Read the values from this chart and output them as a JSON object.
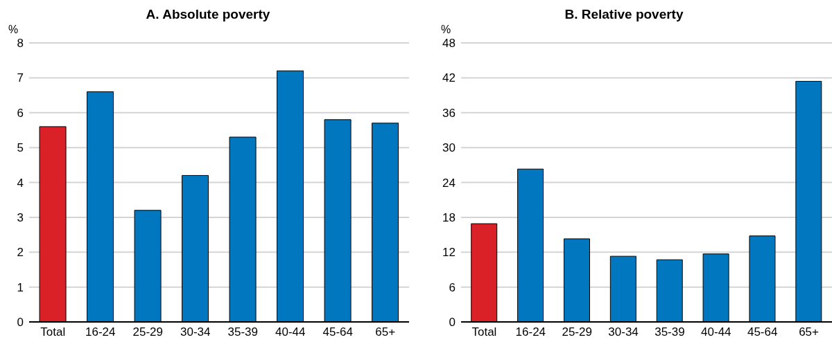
{
  "chart_data": [
    {
      "type": "bar",
      "title": "A. Absolute poverty",
      "ylabel": "%",
      "categories": [
        "Total",
        "16-24",
        "25-29",
        "30-34",
        "35-39",
        "40-44",
        "45-64",
        "65+"
      ],
      "values": [
        5.6,
        6.6,
        3.2,
        4.2,
        5.3,
        7.2,
        5.8,
        5.7
      ],
      "colors": [
        "#da2128",
        "#0077be",
        "#0077be",
        "#0077be",
        "#0077be",
        "#0077be",
        "#0077be",
        "#0077be"
      ],
      "ylim": [
        0,
        8
      ],
      "yticks": [
        0,
        1,
        2,
        3,
        4,
        5,
        6,
        7,
        8
      ],
      "grid": "y"
    },
    {
      "type": "bar",
      "title": "B. Relative poverty",
      "ylabel": "%",
      "categories": [
        "Total",
        "16-24",
        "25-29",
        "30-34",
        "35-39",
        "40-44",
        "45-64",
        "65+"
      ],
      "values": [
        16.9,
        26.3,
        14.3,
        11.3,
        10.7,
        11.7,
        14.8,
        41.4
      ],
      "colors": [
        "#da2128",
        "#0077be",
        "#0077be",
        "#0077be",
        "#0077be",
        "#0077be",
        "#0077be",
        "#0077be"
      ],
      "ylim": [
        0,
        48
      ],
      "yticks": [
        0,
        6,
        12,
        18,
        24,
        30,
        36,
        42,
        48
      ],
      "grid": "y"
    }
  ]
}
